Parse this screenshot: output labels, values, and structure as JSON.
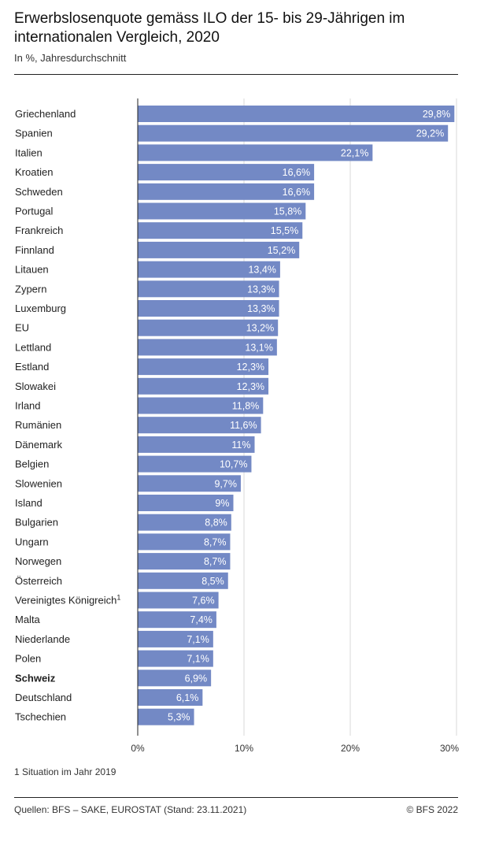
{
  "header": {
    "title": "Erwerbslosenquote gemäss ILO der 15- bis 29-Jährigen im internationalen Vergleich, 2020",
    "subtitle": "In %, Jahresdurchschnitt"
  },
  "chart_data": {
    "type": "bar",
    "orientation": "horizontal",
    "title": "Erwerbslosenquote gemäss ILO der 15- bis 29-Jährigen im internationalen Vergleich, 2020",
    "subtitle": "In %, Jahresdurchschnitt",
    "xlabel": "",
    "ylabel": "",
    "xlim": [
      0,
      30
    ],
    "x_ticks": [
      "0%",
      "10%",
      "20%",
      "30%"
    ],
    "grid": true,
    "bar_color": "#7389c5",
    "categories": [
      "Griechenland",
      "Spanien",
      "Italien",
      "Kroatien",
      "Schweden",
      "Portugal",
      "Frankreich",
      "Finnland",
      "Litauen",
      "Zypern",
      "Luxemburg",
      "EU",
      "Lettland",
      "Estland",
      "Slowakei",
      "Irland",
      "Rumänien",
      "Dänemark",
      "Belgien",
      "Slowenien",
      "Island",
      "Bulgarien",
      "Ungarn",
      "Norwegen",
      "Österreich",
      "Vereinigtes Königreich",
      "Malta",
      "Niederlande",
      "Polen",
      "Schweiz",
      "Deutschland",
      "Tschechien"
    ],
    "superscripts": {
      "Vereinigtes Königreich": "1"
    },
    "highlight": "Schweiz",
    "values": [
      29.8,
      29.2,
      22.1,
      16.6,
      16.6,
      15.8,
      15.5,
      15.2,
      13.4,
      13.3,
      13.3,
      13.2,
      13.1,
      12.3,
      12.3,
      11.8,
      11.6,
      11,
      10.7,
      9.7,
      9,
      8.8,
      8.7,
      8.7,
      8.5,
      7.6,
      7.4,
      7.1,
      7.1,
      6.9,
      6.1,
      5.3
    ],
    "data_labels": [
      "29,8%",
      "29,2%",
      "22,1%",
      "16,6%",
      "16,6%",
      "15,8%",
      "15,5%",
      "15,2%",
      "13,4%",
      "13,3%",
      "13,3%",
      "13,2%",
      "13,1%",
      "12,3%",
      "12,3%",
      "11,8%",
      "11,6%",
      "11%",
      "10,7%",
      "9,7%",
      "9%",
      "8,8%",
      "8,7%",
      "8,7%",
      "8,5%",
      "7,6%",
      "7,4%",
      "7,1%",
      "7,1%",
      "6,9%",
      "6,1%",
      "5,3%"
    ]
  },
  "footer": {
    "footnote": "1 Situation im Jahr 2019",
    "source": "Quellen: BFS – SAKE, EUROSTAT (Stand: 23.11.2021)",
    "copyright": "© BFS 2022"
  }
}
